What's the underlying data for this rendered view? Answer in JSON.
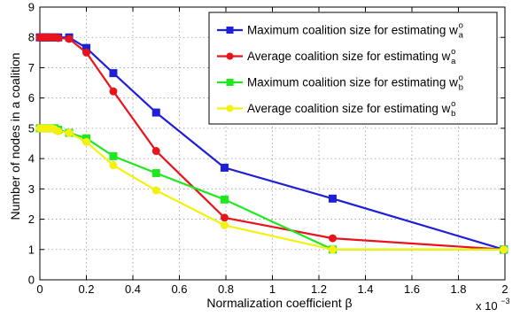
{
  "chart_data": {
    "type": "line",
    "xlabel": "Normalization coefficient β",
    "ylabel": "Number of nodes in a coalition",
    "x_multiplier_label": "x 10",
    "x_multiplier_exponent": "−3",
    "xlim": [
      0,
      2
    ],
    "ylim": [
      0,
      9
    ],
    "xticks": [
      "0",
      "0.2",
      "0.4",
      "0.6",
      "0.8",
      "1",
      "1.2",
      "1.4",
      "1.6",
      "1.8",
      "2"
    ],
    "yticks": [
      "0",
      "1",
      "2",
      "3",
      "4",
      "5",
      "6",
      "7",
      "8",
      "9"
    ],
    "grid": true,
    "legend_position": "top-right",
    "series": [
      {
        "name": "Maximum coalition size for estimating w",
        "name_superscript": "o",
        "name_subscript": "a",
        "color": "#1f1fd8",
        "marker": "square",
        "x": [
          0,
          0.01,
          0.02,
          0.03,
          0.04,
          0.05,
          0.063,
          0.079,
          0.126,
          0.2,
          0.316,
          0.5,
          0.794,
          1.259,
          1.995
        ],
        "y": [
          8,
          8,
          8,
          8,
          8,
          8,
          8,
          8,
          8,
          7.65,
          6.82,
          5.52,
          3.7,
          2.68,
          1
        ]
      },
      {
        "name": "Average coalition size for estimating w",
        "name_superscript": "o",
        "name_subscript": "a",
        "color": "#e8141c",
        "marker": "circle",
        "x": [
          0,
          0.01,
          0.02,
          0.03,
          0.04,
          0.05,
          0.063,
          0.079,
          0.126,
          0.2,
          0.316,
          0.5,
          0.794,
          1.259,
          1.995
        ],
        "y": [
          8,
          8,
          8,
          8,
          8,
          8,
          8,
          7.98,
          7.95,
          7.5,
          6.22,
          4.25,
          2.05,
          1.37,
          1
        ]
      },
      {
        "name": "Maximum coalition size for estimating w",
        "name_superscript": "o",
        "name_subscript": "b",
        "color": "#1ee81e",
        "marker": "square",
        "x": [
          0,
          0.01,
          0.02,
          0.03,
          0.04,
          0.05,
          0.063,
          0.079,
          0.126,
          0.2,
          0.316,
          0.5,
          0.794,
          1.259,
          1.995
        ],
        "y": [
          5,
          5,
          5,
          5,
          5,
          5,
          5,
          4.95,
          4.85,
          4.67,
          4.08,
          3.52,
          2.65,
          1,
          1
        ]
      },
      {
        "name": "Average coalition size for estimating w",
        "name_superscript": "o",
        "name_subscript": "b",
        "color": "#f2f20e",
        "marker": "circle",
        "x": [
          0,
          0.01,
          0.02,
          0.03,
          0.04,
          0.05,
          0.063,
          0.079,
          0.126,
          0.2,
          0.316,
          0.5,
          0.794,
          1.259,
          1.995
        ],
        "y": [
          5,
          5,
          5,
          5,
          5,
          5,
          4.97,
          4.9,
          4.85,
          4.55,
          3.78,
          2.95,
          1.8,
          1,
          1
        ]
      }
    ]
  }
}
